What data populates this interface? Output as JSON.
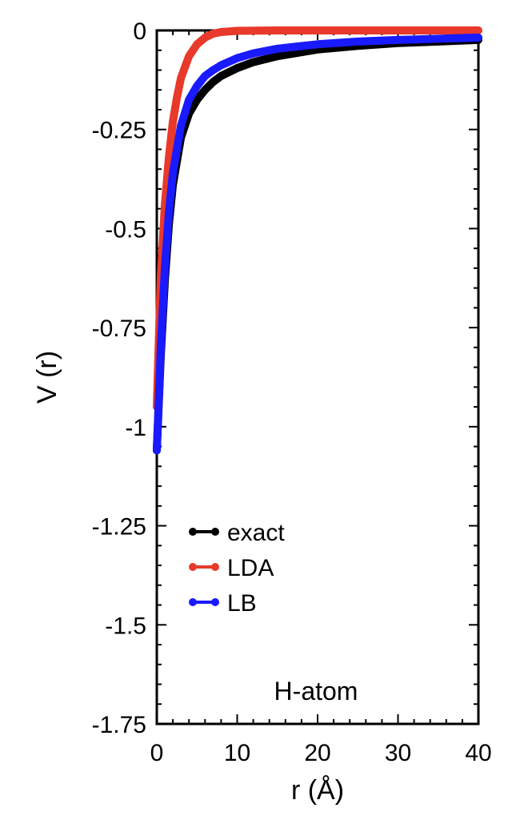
{
  "chart_data": {
    "type": "line",
    "xlabel": "r (Å)",
    "ylabel": "V (r)",
    "xlim": [
      0,
      40
    ],
    "ylim": [
      -1.75,
      0
    ],
    "xticks": [
      0,
      10,
      20,
      30,
      40
    ],
    "yticks": [
      0,
      -0.25,
      -0.5,
      -0.75,
      -1,
      -1.25,
      -1.5,
      -1.75
    ],
    "xtick_labels": [
      "0",
      "10",
      "20",
      "30",
      "40"
    ],
    "ytick_labels": [
      "0",
      "-0.25",
      "-0.5",
      "-0.75",
      "-1",
      "-1.25",
      "-1.5",
      "-1.75"
    ],
    "grid": false,
    "legend_position": "lower-left",
    "annotation": "H-atom",
    "series": [
      {
        "name": "exact",
        "color": "#000000",
        "x": [
          0,
          0.5,
          1,
          1.5,
          2,
          3,
          4,
          5,
          6,
          7,
          8,
          10,
          12,
          15,
          20,
          25,
          30,
          35,
          40
        ],
        "y": [
          -1.06,
          -0.82,
          -0.63,
          -0.49,
          -0.39,
          -0.27,
          -0.21,
          -0.175,
          -0.15,
          -0.13,
          -0.115,
          -0.095,
          -0.08,
          -0.065,
          -0.048,
          -0.039,
          -0.032,
          -0.028,
          -0.024
        ]
      },
      {
        "name": "LDA",
        "color": "#e8392a",
        "x": [
          0,
          0.5,
          1,
          1.5,
          2,
          2.5,
          3,
          4,
          5,
          6,
          7,
          8,
          10,
          15,
          20,
          30,
          40
        ],
        "y": [
          -0.95,
          -0.62,
          -0.44,
          -0.32,
          -0.23,
          -0.17,
          -0.12,
          -0.065,
          -0.035,
          -0.018,
          -0.008,
          -0.004,
          -0.001,
          0,
          0,
          0,
          0
        ]
      },
      {
        "name": "LB",
        "color": "#1a1aff",
        "x": [
          0,
          0.5,
          1,
          1.5,
          2,
          3,
          4,
          5,
          6,
          7,
          8,
          10,
          12,
          15,
          20,
          25,
          30,
          35,
          40
        ],
        "y": [
          -1.06,
          -0.8,
          -0.6,
          -0.46,
          -0.36,
          -0.24,
          -0.175,
          -0.14,
          -0.115,
          -0.1,
          -0.088,
          -0.07,
          -0.058,
          -0.046,
          -0.035,
          -0.028,
          -0.024,
          -0.021,
          -0.018
        ]
      }
    ]
  }
}
